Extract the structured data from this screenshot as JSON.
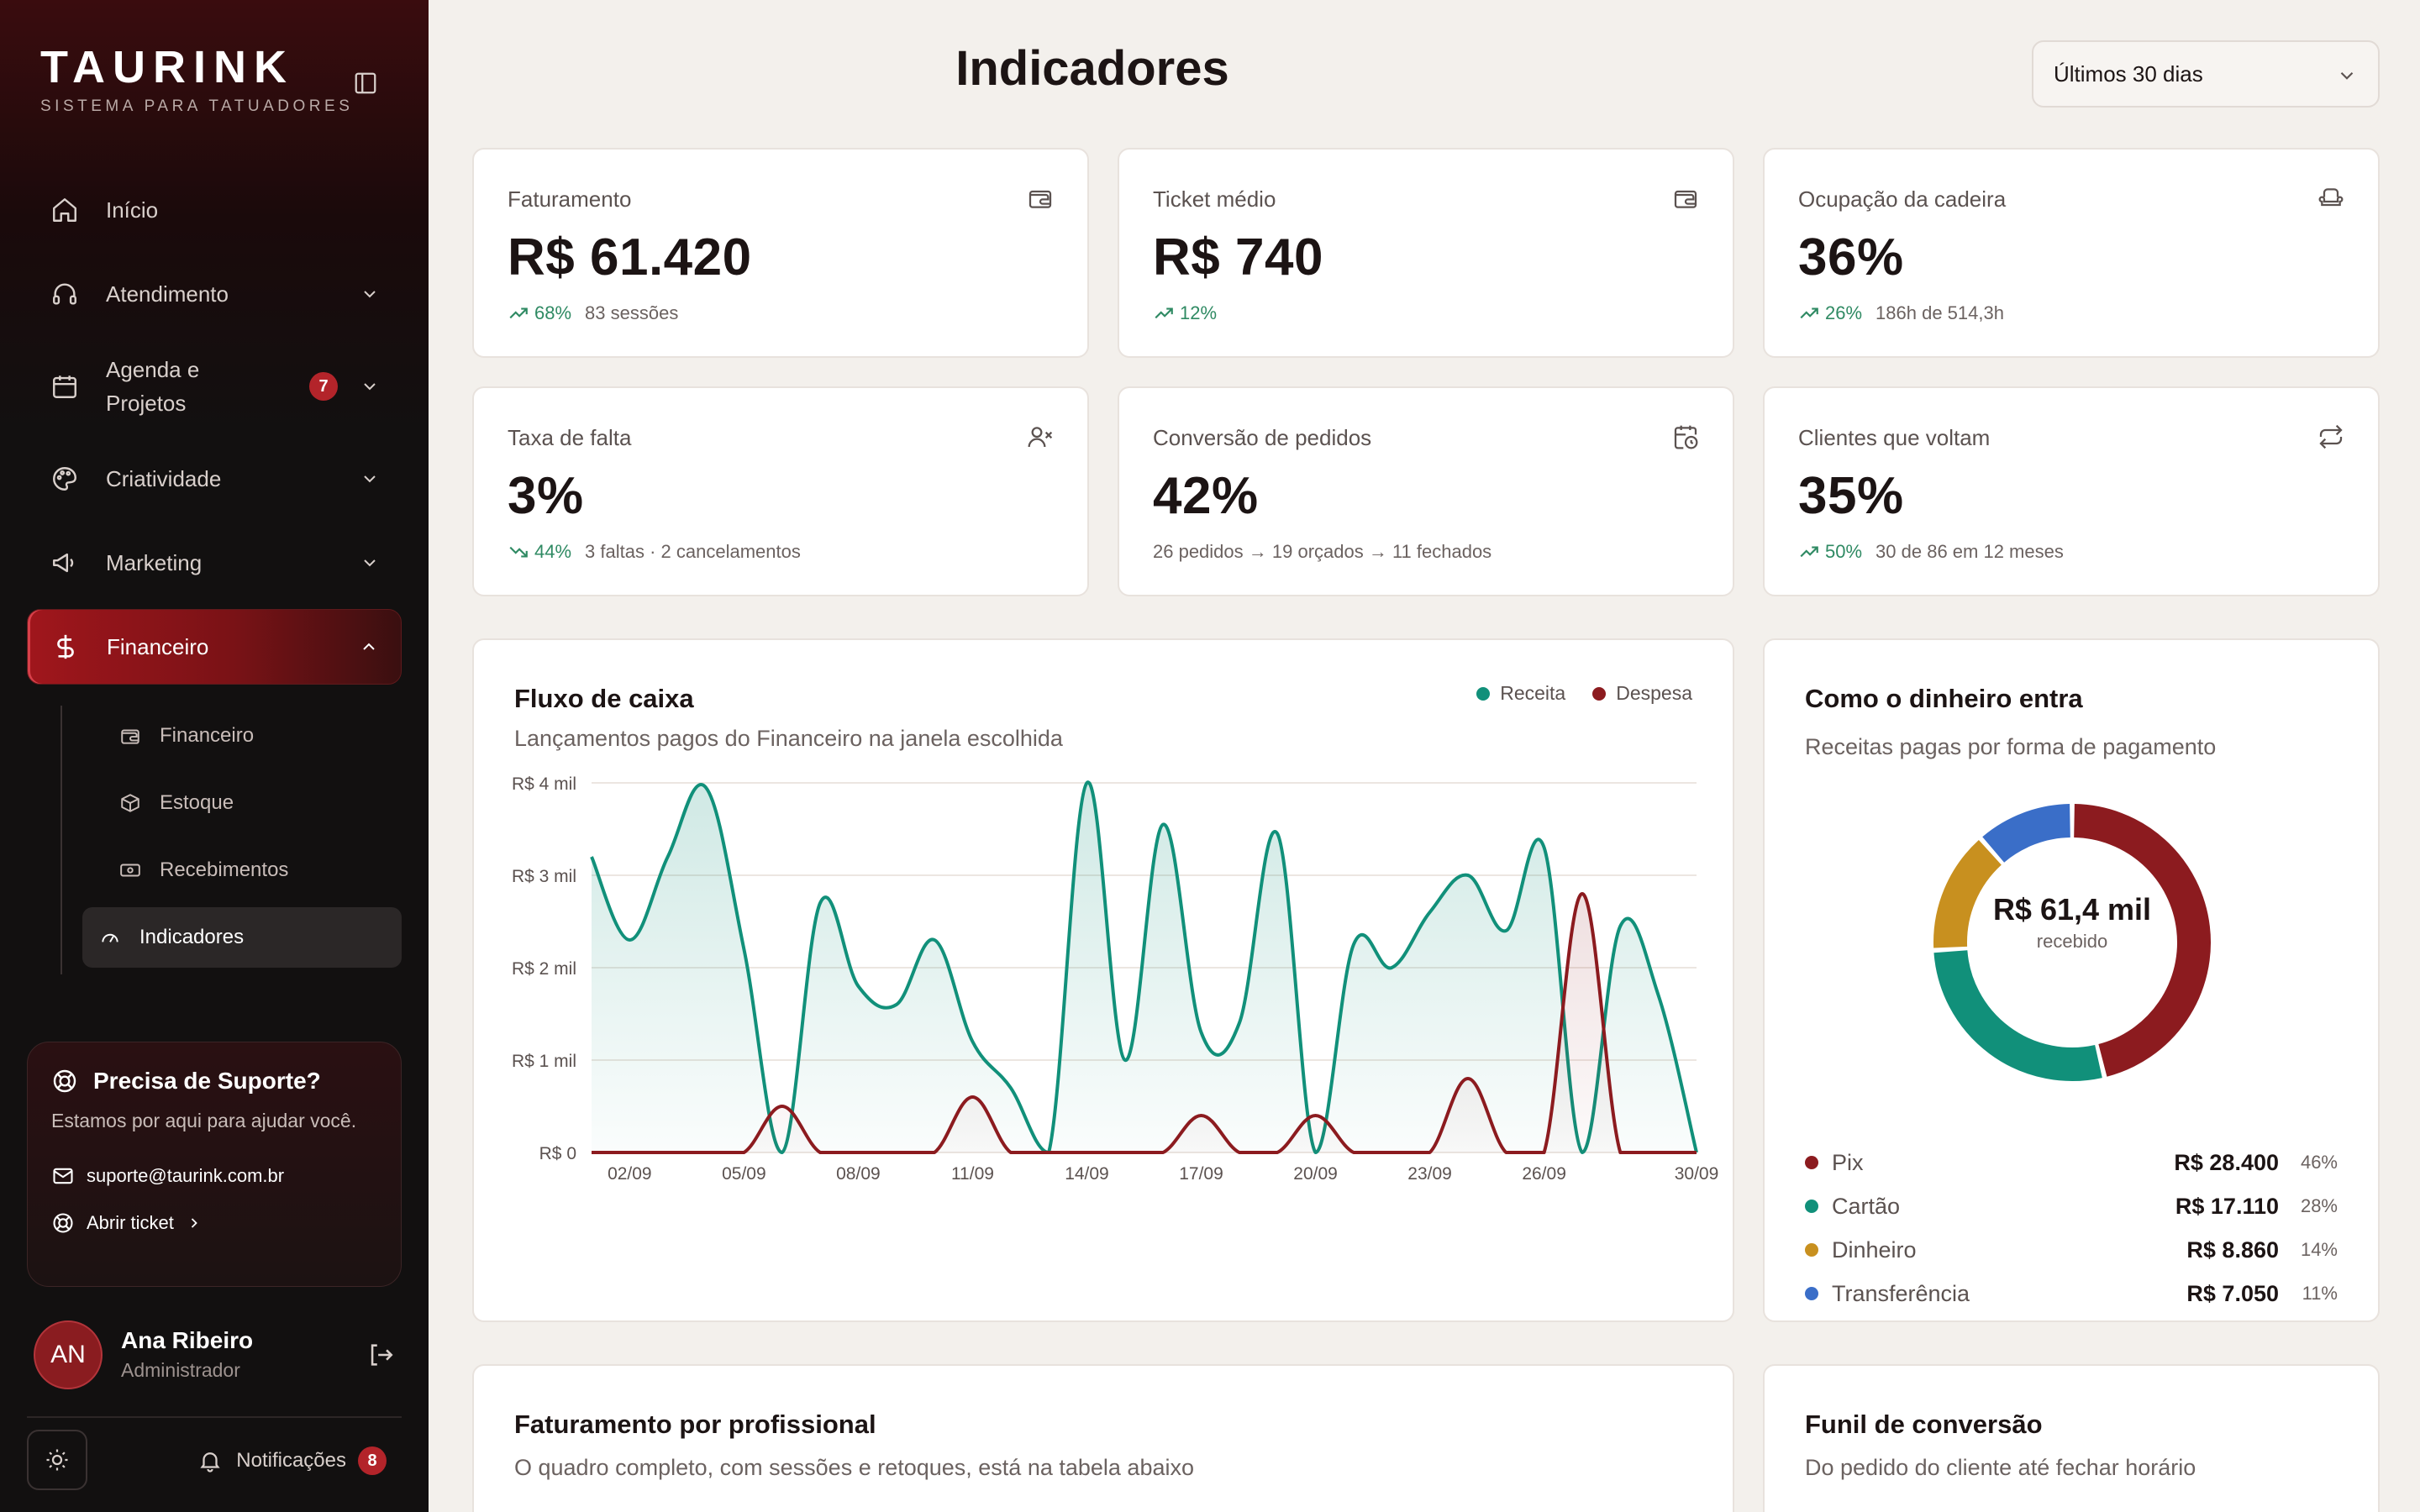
{
  "brand": {
    "name": "TAURINK",
    "tagline": "SISTEMA PARA TATUADORES"
  },
  "nav": {
    "items": [
      {
        "label": "Início",
        "icon": "home-icon"
      },
      {
        "label": "Atendimento",
        "icon": "headset-icon"
      },
      {
        "label": "Agenda e Projetos",
        "icon": "calendar-icon",
        "badge": "7"
      },
      {
        "label": "Criatividade",
        "icon": "palette-icon"
      },
      {
        "label": "Marketing",
        "icon": "megaphone-icon"
      },
      {
        "label": "Financeiro",
        "icon": "dollar-icon",
        "active": true
      }
    ],
    "subitems": [
      {
        "label": "Financeiro",
        "icon": "wallet-icon"
      },
      {
        "label": "Estoque",
        "icon": "box-icon"
      },
      {
        "label": "Recebimentos",
        "icon": "banknote-icon"
      },
      {
        "label": "Indicadores",
        "icon": "gauge-icon",
        "active": true
      }
    ]
  },
  "support": {
    "title": "Precisa de Suporte?",
    "text": "Estamos por aqui para ajudar você.",
    "email": "suporte@taurink.com.br",
    "ticket": "Abrir ticket"
  },
  "user": {
    "initials": "AN",
    "name": "Ana Ribeiro",
    "role": "Administrador"
  },
  "footer": {
    "notifications_label": "Notificações",
    "notifications_count": "8"
  },
  "header": {
    "title": "Indicadores",
    "period": "Últimos 30 dias"
  },
  "kpis": [
    {
      "label": "Faturamento",
      "value": "R$ 61.420",
      "trend": "68%",
      "direction": "up",
      "detail": "83 sessões",
      "icon": "wallet-icon"
    },
    {
      "label": "Ticket médio",
      "value": "R$ 740",
      "trend": "12%",
      "direction": "up",
      "detail": "",
      "icon": "wallet-icon"
    },
    {
      "label": "Ocupação da cadeira",
      "value": "36%",
      "trend": "26%",
      "direction": "up",
      "detail": "186h de 514,3h",
      "icon": "armchair-icon"
    },
    {
      "label": "Taxa de falta",
      "value": "3%",
      "trend": "44%",
      "direction": "down",
      "detail": "3 faltas · 2 cancelamentos",
      "icon": "user-x-icon"
    },
    {
      "label": "Conversão de pedidos",
      "value": "42%",
      "trend": "",
      "direction": "",
      "detail": "26 pedidos → 19 orçados → 11 fechados",
      "icon": "calendar-clock-icon"
    },
    {
      "label": "Clientes que voltam",
      "value": "35%",
      "trend": "50%",
      "direction": "up",
      "detail": "30 de 86 em 12 meses",
      "icon": "repeat-icon"
    }
  ],
  "cashflow": {
    "title": "Fluxo de caixa",
    "subtitle": "Lançamentos pagos do Financeiro na janela escolhida",
    "chart_data": {
      "type": "area",
      "x": [
        "01/09",
        "02/09",
        "03/09",
        "04/09",
        "05/09",
        "06/09",
        "07/09",
        "08/09",
        "09/09",
        "10/09",
        "11/09",
        "12/09",
        "13/09",
        "14/09",
        "15/09",
        "16/09",
        "17/09",
        "18/09",
        "19/09",
        "20/09",
        "21/09",
        "22/09",
        "23/09",
        "24/09",
        "25/09",
        "26/09",
        "27/09",
        "28/09",
        "29/09",
        "30/09"
      ],
      "tick_labels": [
        "02/09",
        "05/09",
        "08/09",
        "11/09",
        "14/09",
        "17/09",
        "20/09",
        "23/09",
        "26/09",
        "30/09"
      ],
      "ytick_labels": [
        "R$ 0",
        "R$ 1 mil",
        "R$ 2 mil",
        "R$ 3 mil",
        "R$ 4 mil"
      ],
      "yticks": [
        0,
        1000,
        2000,
        3000,
        4000
      ],
      "ylim": [
        0,
        4000
      ],
      "series": [
        {
          "name": "Receita",
          "color": "#11907a",
          "values": [
            3200,
            2300,
            3200,
            3950,
            2200,
            0,
            2700,
            1800,
            1600,
            2300,
            1200,
            700,
            0,
            4000,
            1000,
            3550,
            1300,
            1400,
            3450,
            0,
            2250,
            2000,
            2600,
            3000,
            2400,
            3300,
            0,
            2450,
            1700,
            0
          ]
        },
        {
          "name": "Despesa",
          "color": "#8c1b1f",
          "values": [
            0,
            0,
            0,
            0,
            0,
            500,
            0,
            0,
            0,
            0,
            600,
            0,
            0,
            0,
            0,
            0,
            400,
            0,
            0,
            400,
            0,
            0,
            0,
            800,
            0,
            0,
            2800,
            0,
            0,
            0
          ]
        }
      ],
      "grid": true
    }
  },
  "payments": {
    "title": "Como o dinheiro entra",
    "subtitle": "Receitas pagas por forma de pagamento",
    "center_value": "R$ 61,4 mil",
    "center_label": "recebido",
    "chart_data": {
      "type": "pie",
      "labels": [
        "Pix",
        "Cartão",
        "Dinheiro",
        "Transferência"
      ],
      "values": [
        28400,
        17110,
        8860,
        7050
      ],
      "amounts": [
        "R$ 28.400",
        "R$ 17.110",
        "R$ 8.860",
        "R$ 7.050"
      ],
      "percents": [
        "46%",
        "28%",
        "14%",
        "11%"
      ],
      "colors": [
        "#8c1b1f",
        "#11907a",
        "#c8901f",
        "#3a6ec8"
      ]
    }
  },
  "professionals": {
    "title": "Faturamento por profissional",
    "subtitle": "O quadro completo, com sessões e retoques, está na tabela abaixo"
  },
  "funnel": {
    "title": "Funil de conversão",
    "subtitle": "Do pedido do cliente até fechar horário"
  },
  "colors": {
    "accent": "#8c1b1f",
    "positive": "#2f8a63",
    "receita": "#11907a",
    "despesa": "#8c1b1f"
  }
}
